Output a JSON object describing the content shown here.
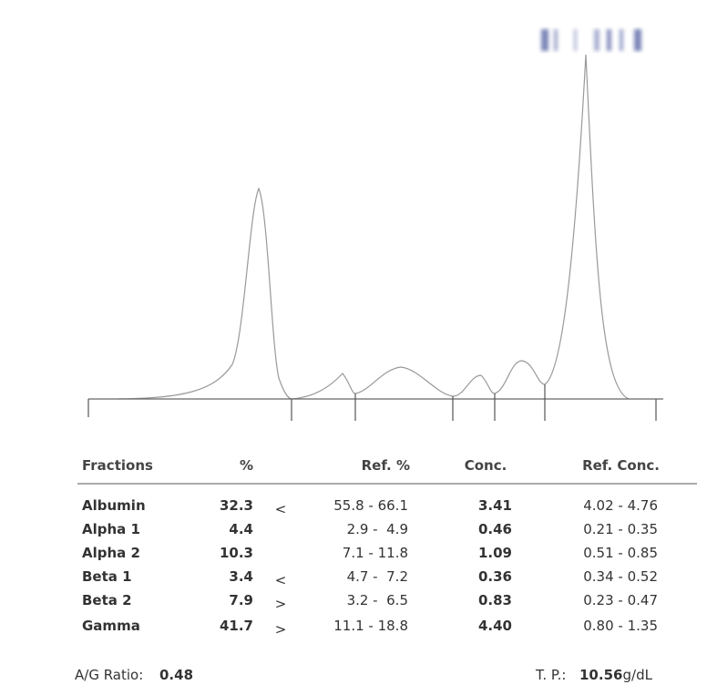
{
  "table": {
    "headers": [
      "Fractions",
      "%",
      "Ref. %",
      "Conc.",
      "Ref. Conc."
    ],
    "rows": [
      {
        "name": "Albumin",
        "pct": "32.3",
        "flag": "<",
        "ref_pct": "55.8 - 66.1",
        "conc": "3.41",
        "ref_conc": "4.02 - 4.76"
      },
      {
        "name": "Alpha 1",
        "pct": "4.4",
        "ref_pct": "2.9 -  4.9",
        "conc": "0.46",
        "ref_conc": "0.21 - 0.35"
      },
      {
        "name": "Alpha 2",
        "pct": "10.3",
        "ref_pct": "7.1 - 11.8",
        "conc": "1.09",
        "ref_conc": "0.51 - 0.85"
      },
      {
        "name": "Beta 1",
        "pct": "3.4",
        "flag": "<",
        "ref_pct": "4.7 -  7.2",
        "conc": "0.36",
        "ref_conc": "0.34 - 0.52"
      },
      {
        "name": "Beta 2",
        "pct": "7.9",
        "flag": ">",
        "ref_pct": "3.2 -  6.5",
        "conc": "0.83",
        "ref_conc": "0.23 - 0.47"
      },
      {
        "name": "Gamma",
        "pct": "41.7",
        "flag": ">",
        "ref_pct": "11.1 - 18.8",
        "conc": "4.40",
        "ref_conc": "0.80 - 1.35"
      }
    ]
  },
  "footer": {
    "ag_label": "A/G Ratio:",
    "ag_value": "0.48",
    "tp_label": "T. P.:",
    "tp_value": "10.56",
    "tp_unit": "g/dL"
  }
}
